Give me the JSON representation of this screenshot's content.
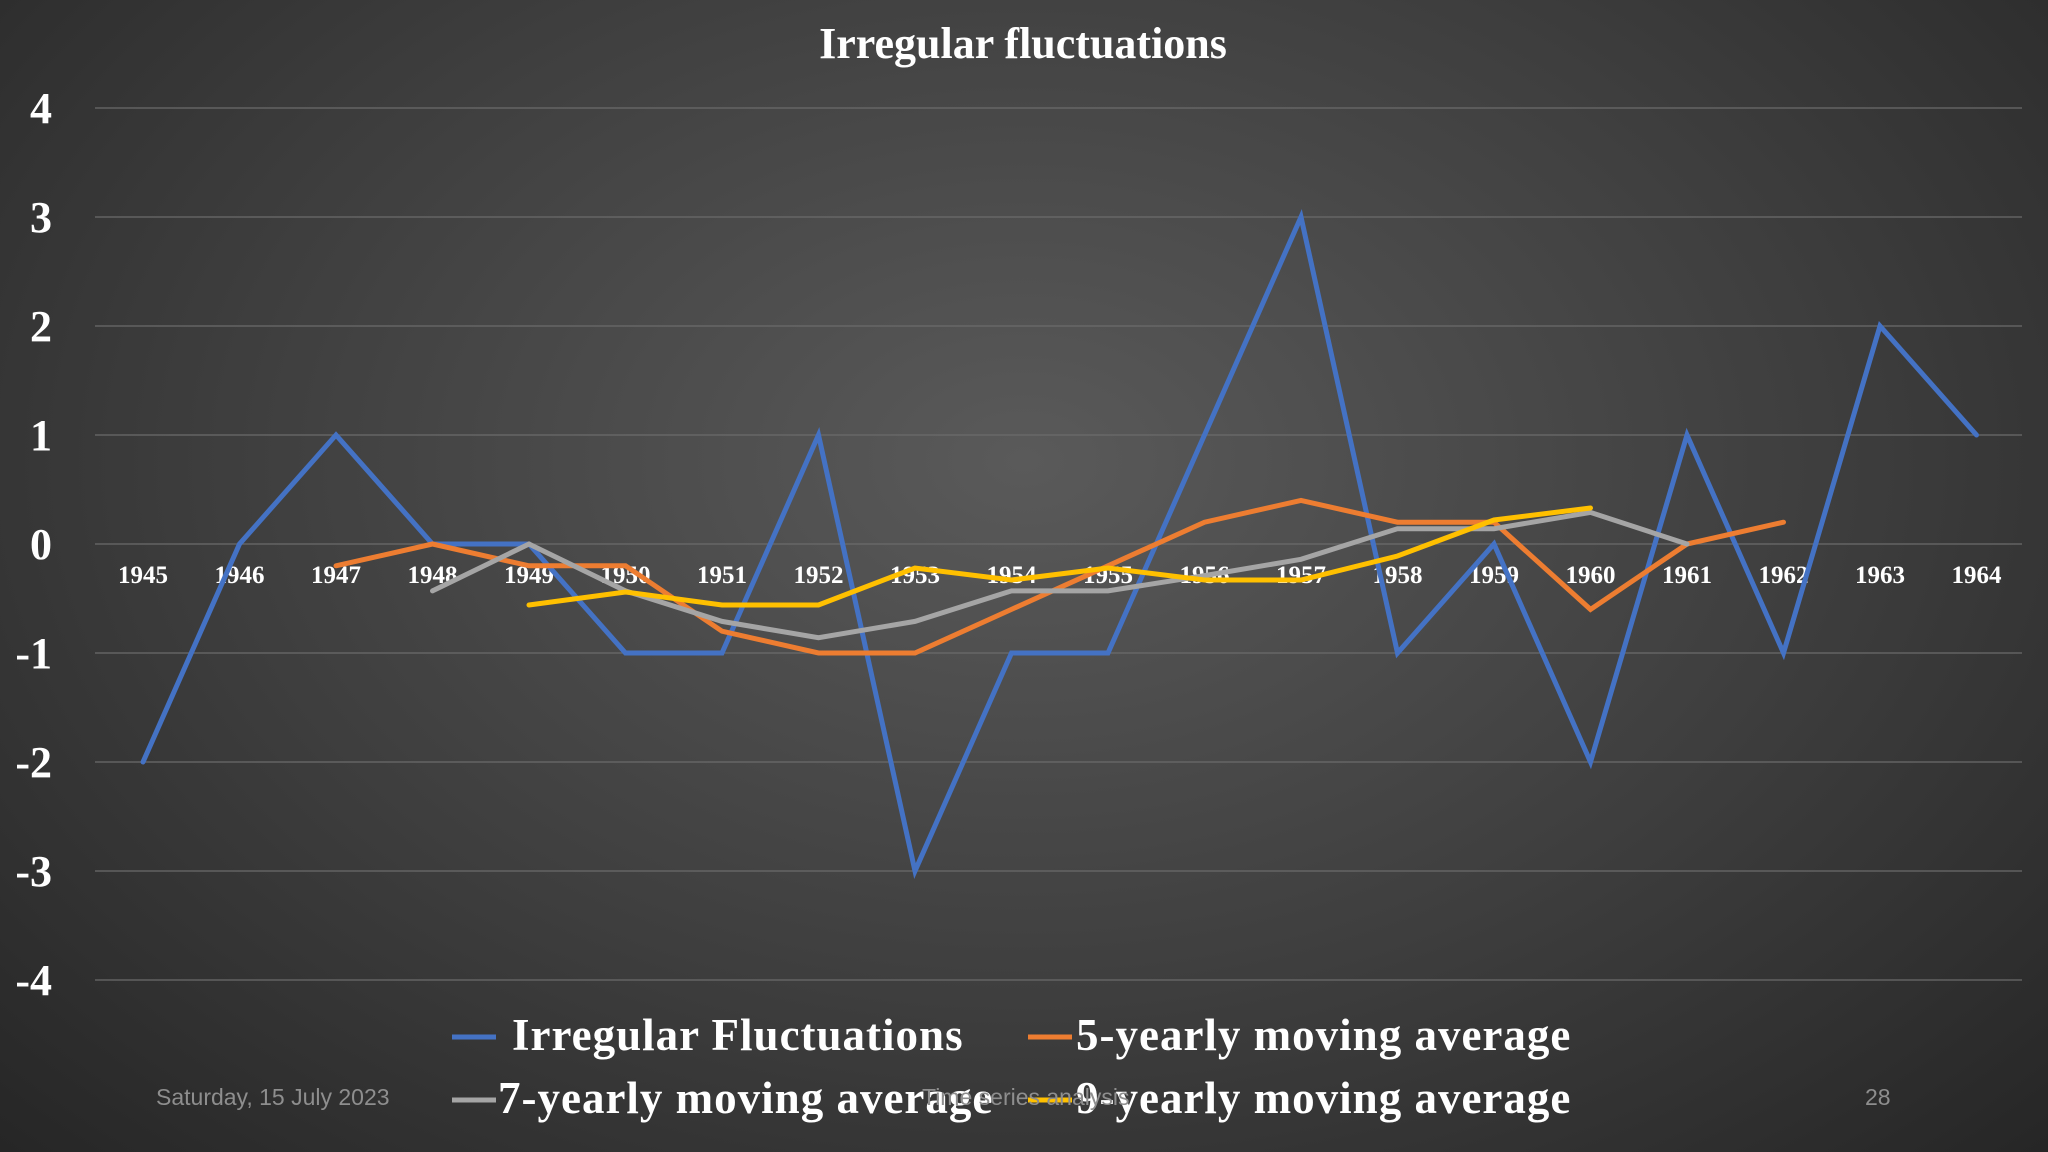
{
  "chart_data": {
    "type": "line",
    "title": "Irregular fluctuations",
    "xlabel": "",
    "ylabel": "",
    "ylim": [
      -4,
      4
    ],
    "yticks": [
      "4",
      "3",
      "2",
      "1",
      "0",
      "-1",
      "-2",
      "-3",
      "-4"
    ],
    "grid": true,
    "legend_position": "bottom",
    "categories": [
      "1945",
      "1946",
      "1947",
      "1948",
      "1949",
      "1950",
      "1951",
      "1952",
      "1953",
      "1954",
      "1955",
      "1956",
      "1957",
      "1958",
      "1959",
      "1960",
      "1961",
      "1962",
      "1963",
      "1964"
    ],
    "series": [
      {
        "name": "Irregular Fluctuations",
        "color": "#4472c4",
        "values": [
          -2,
          0,
          1,
          0,
          0,
          -1,
          -1,
          1,
          -3,
          -1,
          -1,
          1,
          3,
          -1,
          0,
          -2,
          1,
          -1,
          2,
          1
        ]
      },
      {
        "name": "5-yearly moving average",
        "color": "#ed7d31",
        "values": [
          null,
          null,
          -0.2,
          0,
          -0.2,
          -0.2,
          -0.8,
          -1,
          -1,
          -0.6,
          -0.2,
          0.2,
          0.4,
          0.2,
          0.2,
          -0.6,
          0,
          0.2,
          null,
          null
        ]
      },
      {
        "name": "7-yearly moving average",
        "color": "#a5a5a5",
        "values": [
          null,
          null,
          null,
          -0.43,
          0,
          -0.43,
          -0.71,
          -0.86,
          -0.71,
          -0.43,
          -0.43,
          -0.29,
          -0.14,
          0.14,
          0.14,
          0.29,
          0,
          null,
          null,
          null
        ]
      },
      {
        "name": "9-yearly moving average",
        "color": "#ffc000",
        "values": [
          null,
          null,
          null,
          null,
          -0.56,
          -0.44,
          -0.56,
          -0.56,
          -0.22,
          -0.33,
          -0.22,
          -0.33,
          -0.33,
          -0.11,
          0.22,
          0.33,
          null,
          null,
          null,
          null
        ]
      }
    ]
  },
  "footer": {
    "date": "Saturday, 15 July 2023",
    "center": "Time series analysis",
    "page": "28"
  }
}
